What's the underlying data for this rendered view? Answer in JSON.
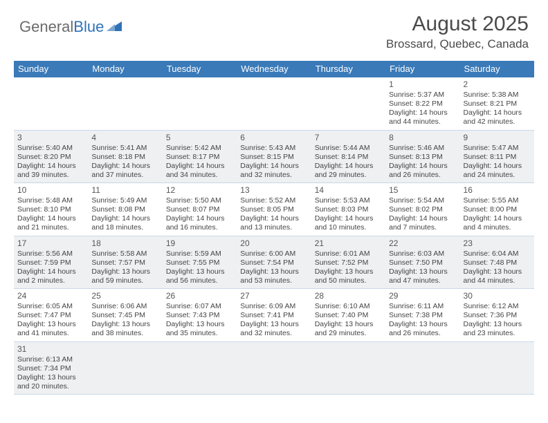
{
  "logo": {
    "text1": "General",
    "text2": "Blue",
    "sail_color": "#2f72b8"
  },
  "title": "August 2025",
  "location": "Brossard, Quebec, Canada",
  "header_bg": "#3a7ab8",
  "alt_row_bg": "#eef0f2",
  "border_color": "#c9d8e6",
  "day_headers": [
    "Sunday",
    "Monday",
    "Tuesday",
    "Wednesday",
    "Thursday",
    "Friday",
    "Saturday"
  ],
  "weeks": [
    [
      null,
      null,
      null,
      null,
      null,
      {
        "n": "1",
        "sr": "Sunrise: 5:37 AM",
        "ss": "Sunset: 8:22 PM",
        "d1": "Daylight: 14 hours",
        "d2": "and 44 minutes."
      },
      {
        "n": "2",
        "sr": "Sunrise: 5:38 AM",
        "ss": "Sunset: 8:21 PM",
        "d1": "Daylight: 14 hours",
        "d2": "and 42 minutes."
      }
    ],
    [
      {
        "n": "3",
        "sr": "Sunrise: 5:40 AM",
        "ss": "Sunset: 8:20 PM",
        "d1": "Daylight: 14 hours",
        "d2": "and 39 minutes."
      },
      {
        "n": "4",
        "sr": "Sunrise: 5:41 AM",
        "ss": "Sunset: 8:18 PM",
        "d1": "Daylight: 14 hours",
        "d2": "and 37 minutes."
      },
      {
        "n": "5",
        "sr": "Sunrise: 5:42 AM",
        "ss": "Sunset: 8:17 PM",
        "d1": "Daylight: 14 hours",
        "d2": "and 34 minutes."
      },
      {
        "n": "6",
        "sr": "Sunrise: 5:43 AM",
        "ss": "Sunset: 8:15 PM",
        "d1": "Daylight: 14 hours",
        "d2": "and 32 minutes."
      },
      {
        "n": "7",
        "sr": "Sunrise: 5:44 AM",
        "ss": "Sunset: 8:14 PM",
        "d1": "Daylight: 14 hours",
        "d2": "and 29 minutes."
      },
      {
        "n": "8",
        "sr": "Sunrise: 5:46 AM",
        "ss": "Sunset: 8:13 PM",
        "d1": "Daylight: 14 hours",
        "d2": "and 26 minutes."
      },
      {
        "n": "9",
        "sr": "Sunrise: 5:47 AM",
        "ss": "Sunset: 8:11 PM",
        "d1": "Daylight: 14 hours",
        "d2": "and 24 minutes."
      }
    ],
    [
      {
        "n": "10",
        "sr": "Sunrise: 5:48 AM",
        "ss": "Sunset: 8:10 PM",
        "d1": "Daylight: 14 hours",
        "d2": "and 21 minutes."
      },
      {
        "n": "11",
        "sr": "Sunrise: 5:49 AM",
        "ss": "Sunset: 8:08 PM",
        "d1": "Daylight: 14 hours",
        "d2": "and 18 minutes."
      },
      {
        "n": "12",
        "sr": "Sunrise: 5:50 AM",
        "ss": "Sunset: 8:07 PM",
        "d1": "Daylight: 14 hours",
        "d2": "and 16 minutes."
      },
      {
        "n": "13",
        "sr": "Sunrise: 5:52 AM",
        "ss": "Sunset: 8:05 PM",
        "d1": "Daylight: 14 hours",
        "d2": "and 13 minutes."
      },
      {
        "n": "14",
        "sr": "Sunrise: 5:53 AM",
        "ss": "Sunset: 8:03 PM",
        "d1": "Daylight: 14 hours",
        "d2": "and 10 minutes."
      },
      {
        "n": "15",
        "sr": "Sunrise: 5:54 AM",
        "ss": "Sunset: 8:02 PM",
        "d1": "Daylight: 14 hours",
        "d2": "and 7 minutes."
      },
      {
        "n": "16",
        "sr": "Sunrise: 5:55 AM",
        "ss": "Sunset: 8:00 PM",
        "d1": "Daylight: 14 hours",
        "d2": "and 4 minutes."
      }
    ],
    [
      {
        "n": "17",
        "sr": "Sunrise: 5:56 AM",
        "ss": "Sunset: 7:59 PM",
        "d1": "Daylight: 14 hours",
        "d2": "and 2 minutes."
      },
      {
        "n": "18",
        "sr": "Sunrise: 5:58 AM",
        "ss": "Sunset: 7:57 PM",
        "d1": "Daylight: 13 hours",
        "d2": "and 59 minutes."
      },
      {
        "n": "19",
        "sr": "Sunrise: 5:59 AM",
        "ss": "Sunset: 7:55 PM",
        "d1": "Daylight: 13 hours",
        "d2": "and 56 minutes."
      },
      {
        "n": "20",
        "sr": "Sunrise: 6:00 AM",
        "ss": "Sunset: 7:54 PM",
        "d1": "Daylight: 13 hours",
        "d2": "and 53 minutes."
      },
      {
        "n": "21",
        "sr": "Sunrise: 6:01 AM",
        "ss": "Sunset: 7:52 PM",
        "d1": "Daylight: 13 hours",
        "d2": "and 50 minutes."
      },
      {
        "n": "22",
        "sr": "Sunrise: 6:03 AM",
        "ss": "Sunset: 7:50 PM",
        "d1": "Daylight: 13 hours",
        "d2": "and 47 minutes."
      },
      {
        "n": "23",
        "sr": "Sunrise: 6:04 AM",
        "ss": "Sunset: 7:48 PM",
        "d1": "Daylight: 13 hours",
        "d2": "and 44 minutes."
      }
    ],
    [
      {
        "n": "24",
        "sr": "Sunrise: 6:05 AM",
        "ss": "Sunset: 7:47 PM",
        "d1": "Daylight: 13 hours",
        "d2": "and 41 minutes."
      },
      {
        "n": "25",
        "sr": "Sunrise: 6:06 AM",
        "ss": "Sunset: 7:45 PM",
        "d1": "Daylight: 13 hours",
        "d2": "and 38 minutes."
      },
      {
        "n": "26",
        "sr": "Sunrise: 6:07 AM",
        "ss": "Sunset: 7:43 PM",
        "d1": "Daylight: 13 hours",
        "d2": "and 35 minutes."
      },
      {
        "n": "27",
        "sr": "Sunrise: 6:09 AM",
        "ss": "Sunset: 7:41 PM",
        "d1": "Daylight: 13 hours",
        "d2": "and 32 minutes."
      },
      {
        "n": "28",
        "sr": "Sunrise: 6:10 AM",
        "ss": "Sunset: 7:40 PM",
        "d1": "Daylight: 13 hours",
        "d2": "and 29 minutes."
      },
      {
        "n": "29",
        "sr": "Sunrise: 6:11 AM",
        "ss": "Sunset: 7:38 PM",
        "d1": "Daylight: 13 hours",
        "d2": "and 26 minutes."
      },
      {
        "n": "30",
        "sr": "Sunrise: 6:12 AM",
        "ss": "Sunset: 7:36 PM",
        "d1": "Daylight: 13 hours",
        "d2": "and 23 minutes."
      }
    ],
    [
      {
        "n": "31",
        "sr": "Sunrise: 6:13 AM",
        "ss": "Sunset: 7:34 PM",
        "d1": "Daylight: 13 hours",
        "d2": "and 20 minutes."
      },
      null,
      null,
      null,
      null,
      null,
      null
    ]
  ]
}
